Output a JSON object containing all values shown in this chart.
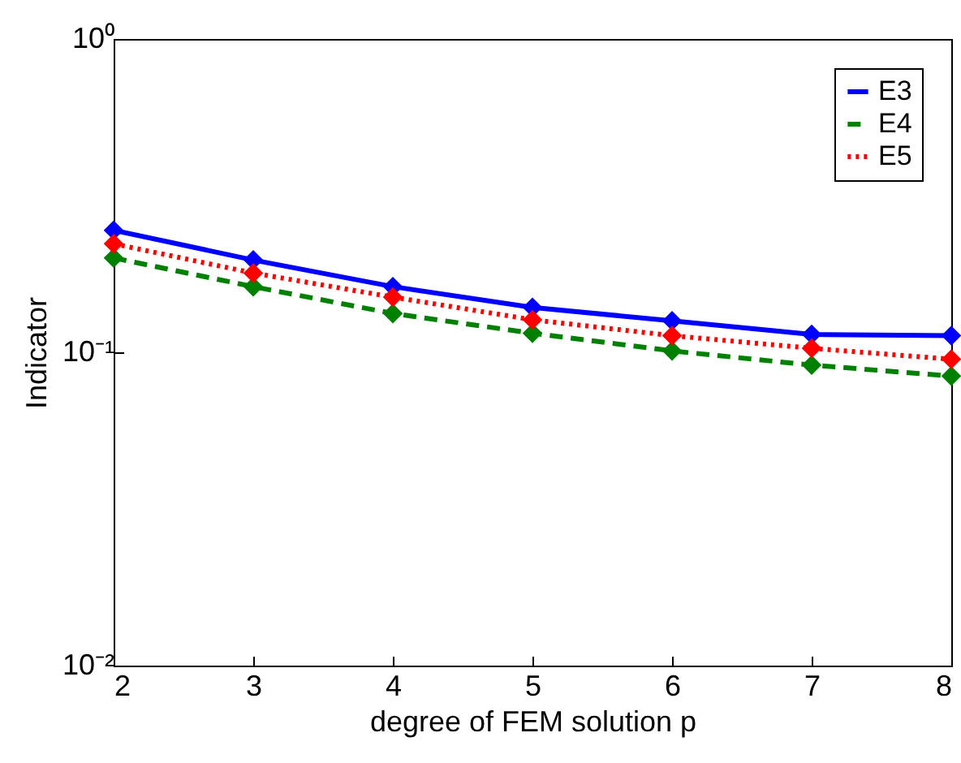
{
  "chart_data": {
    "type": "line",
    "xlabel": "degree of FEM solution p",
    "ylabel": "Indicator",
    "x": [
      2,
      3,
      4,
      5,
      6,
      7,
      8
    ],
    "series": [
      {
        "name": "E3",
        "color": "#0000ff",
        "line_style": "solid",
        "values": [
          0.245,
          0.197,
          0.162,
          0.139,
          0.126,
          0.114,
          0.113
        ]
      },
      {
        "name": "E4",
        "color": "#008000",
        "line_style": "dashed",
        "values": [
          0.2,
          0.162,
          0.133,
          0.115,
          0.101,
          0.091,
          0.084
        ]
      },
      {
        "name": "E5",
        "color": "#ff0000",
        "line_style": "dotted",
        "values": [
          0.222,
          0.179,
          0.15,
          0.127,
          0.113,
          0.103,
          0.095
        ]
      }
    ],
    "log": "y",
    "marker": "diamond",
    "legend": "top right",
    "grid": false,
    "xlim": [
      2,
      8
    ],
    "xticks": [
      2,
      3,
      4,
      5,
      6,
      7,
      8
    ],
    "ylim": [
      0.01,
      1
    ],
    "yticks": [
      {
        "value": 0.01,
        "label": "10⁻²"
      },
      {
        "value": 0.1,
        "label": "10⁻¹"
      },
      {
        "value": 1,
        "label": "10⁰"
      }
    ]
  }
}
